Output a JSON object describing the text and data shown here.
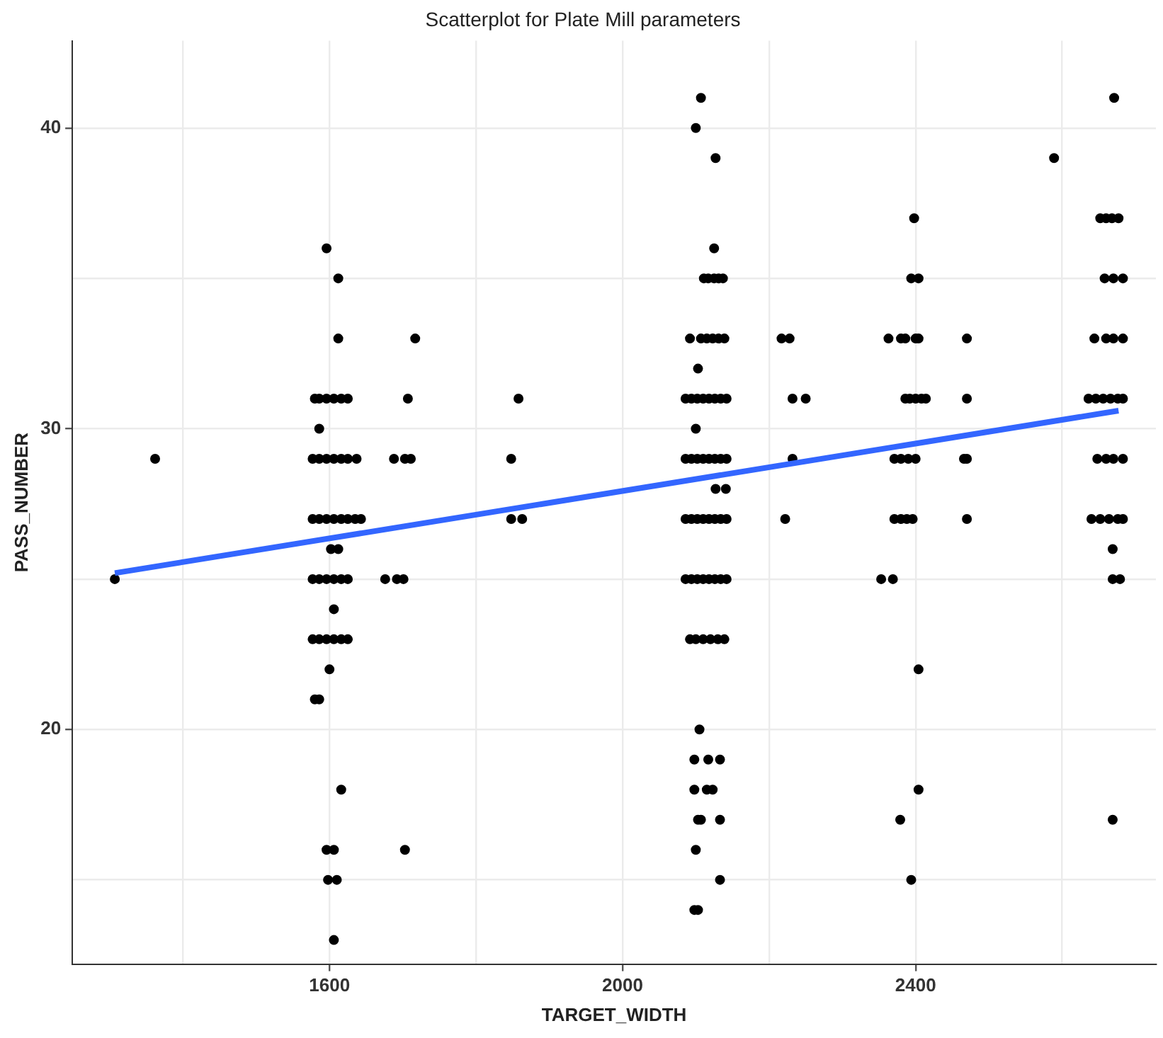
{
  "chart_data": {
    "type": "scatter",
    "title": "Scatterplot for Plate Mill parameters",
    "xlabel": "TARGET_WIDTH",
    "ylabel": "PASS_NUMBER",
    "xlim": [
      1249,
      2728
    ],
    "ylim": [
      12.2,
      42.9
    ],
    "xticks": [
      {
        "value": 1400,
        "label": null
      },
      1600,
      {
        "value": 1800,
        "label": null
      },
      2000,
      {
        "value": 2200,
        "label": null
      },
      2400,
      {
        "value": 2600,
        "label": null
      }
    ],
    "yticks": [
      {
        "value": 15,
        "label": null
      },
      20,
      {
        "value": 25,
        "label": null
      },
      30,
      {
        "value": 35,
        "label": null
      },
      40
    ],
    "grid": true,
    "series": [
      {
        "color": "#000000",
        "marker": "circle",
        "x": [
          1307,
          1362,
          1596,
          1612,
          1612,
          1717,
          1580,
          1586,
          1596,
          1606,
          1616,
          1625,
          1707,
          1586,
          1577,
          1586,
          1596,
          1606,
          1616,
          1625,
          1637,
          1688,
          1703,
          1711,
          1577,
          1586,
          1596,
          1606,
          1616,
          1625,
          1635,
          1643,
          1602,
          1612,
          1577,
          1586,
          1596,
          1606,
          1616,
          1625,
          1676,
          1692,
          1701,
          1606,
          1577,
          1586,
          1596,
          1606,
          1616,
          1625,
          1600,
          1580,
          1586,
          1616,
          1596,
          1606,
          1703,
          1598,
          1610,
          1606,
          1858,
          1848,
          1848,
          1863,
          2107,
          2100,
          2127,
          2125,
          2111,
          2117,
          2125,
          2131,
          2137,
          2092,
          2107,
          2115,
          2123,
          2131,
          2139,
          2217,
          2228,
          2103,
          2086,
          2094,
          2102,
          2110,
          2118,
          2126,
          2134,
          2142,
          2232,
          2250,
          2100,
          2086,
          2094,
          2102,
          2110,
          2118,
          2126,
          2134,
          2142,
          2232,
          2127,
          2141,
          2086,
          2094,
          2102,
          2110,
          2118,
          2126,
          2134,
          2142,
          2222,
          2086,
          2094,
          2102,
          2110,
          2118,
          2126,
          2134,
          2142,
          2092,
          2100,
          2110,
          2120,
          2130,
          2139,
          2105,
          2098,
          2117,
          2133,
          2098,
          2115,
          2123,
          2103,
          2107,
          2133,
          2100,
          2133,
          2098,
          2103,
          2398,
          2394,
          2404,
          2363,
          2380,
          2386,
          2400,
          2404,
          2470,
          2386,
          2392,
          2400,
          2408,
          2414,
          2470,
          2371,
          2380,
          2390,
          2400,
          2466,
          2470,
          2371,
          2380,
          2388,
          2396,
          2470,
          2353,
          2369,
          2404,
          2404,
          2379,
          2394,
          2671,
          2589,
          2652,
          2660,
          2668,
          2677,
          2658,
          2670,
          2683,
          2644,
          2660,
          2670,
          2683,
          2636,
          2646,
          2656,
          2666,
          2676,
          2683,
          2648,
          2660,
          2670,
          2683,
          2640,
          2652,
          2664,
          2676,
          2683,
          2669,
          2669,
          2679,
          2669
        ],
        "values": [
          25,
          29,
          36,
          35,
          33,
          33,
          31,
          31,
          31,
          31,
          31,
          31,
          31,
          30,
          29,
          29,
          29,
          29,
          29,
          29,
          29,
          29,
          29,
          29,
          27,
          27,
          27,
          27,
          27,
          27,
          27,
          27,
          26,
          26,
          25,
          25,
          25,
          25,
          25,
          25,
          25,
          25,
          25,
          24,
          23,
          23,
          23,
          23,
          23,
          23,
          22,
          21,
          21,
          18,
          16,
          16,
          16,
          15,
          15,
          13,
          31,
          29,
          27,
          27,
          41,
          40,
          39,
          36,
          35,
          35,
          35,
          35,
          35,
          33,
          33,
          33,
          33,
          33,
          33,
          33,
          33,
          32,
          31,
          31,
          31,
          31,
          31,
          31,
          31,
          31,
          31,
          31,
          30,
          29,
          29,
          29,
          29,
          29,
          29,
          29,
          29,
          29,
          28,
          28,
          27,
          27,
          27,
          27,
          27,
          27,
          27,
          27,
          27,
          25,
          25,
          25,
          25,
          25,
          25,
          25,
          25,
          23,
          23,
          23,
          23,
          23,
          23,
          20,
          19,
          19,
          19,
          18,
          18,
          18,
          17,
          17,
          17,
          16,
          15,
          14,
          14,
          37,
          35,
          35,
          33,
          33,
          33,
          33,
          33,
          33,
          31,
          31,
          31,
          31,
          31,
          31,
          29,
          29,
          29,
          29,
          29,
          29,
          27,
          27,
          27,
          27,
          27,
          25,
          25,
          22,
          18,
          17,
          15,
          41,
          39,
          37,
          37,
          37,
          37,
          35,
          35,
          35,
          33,
          33,
          33,
          33,
          31,
          31,
          31,
          31,
          31,
          31,
          29,
          29,
          29,
          29,
          27,
          27,
          27,
          27,
          27,
          26,
          25,
          25,
          17
        ]
      },
      {
        "type": "line",
        "color": "#3366ff",
        "x": [
          1307,
          2677
        ],
        "values": [
          25.2,
          30.6
        ]
      }
    ]
  }
}
